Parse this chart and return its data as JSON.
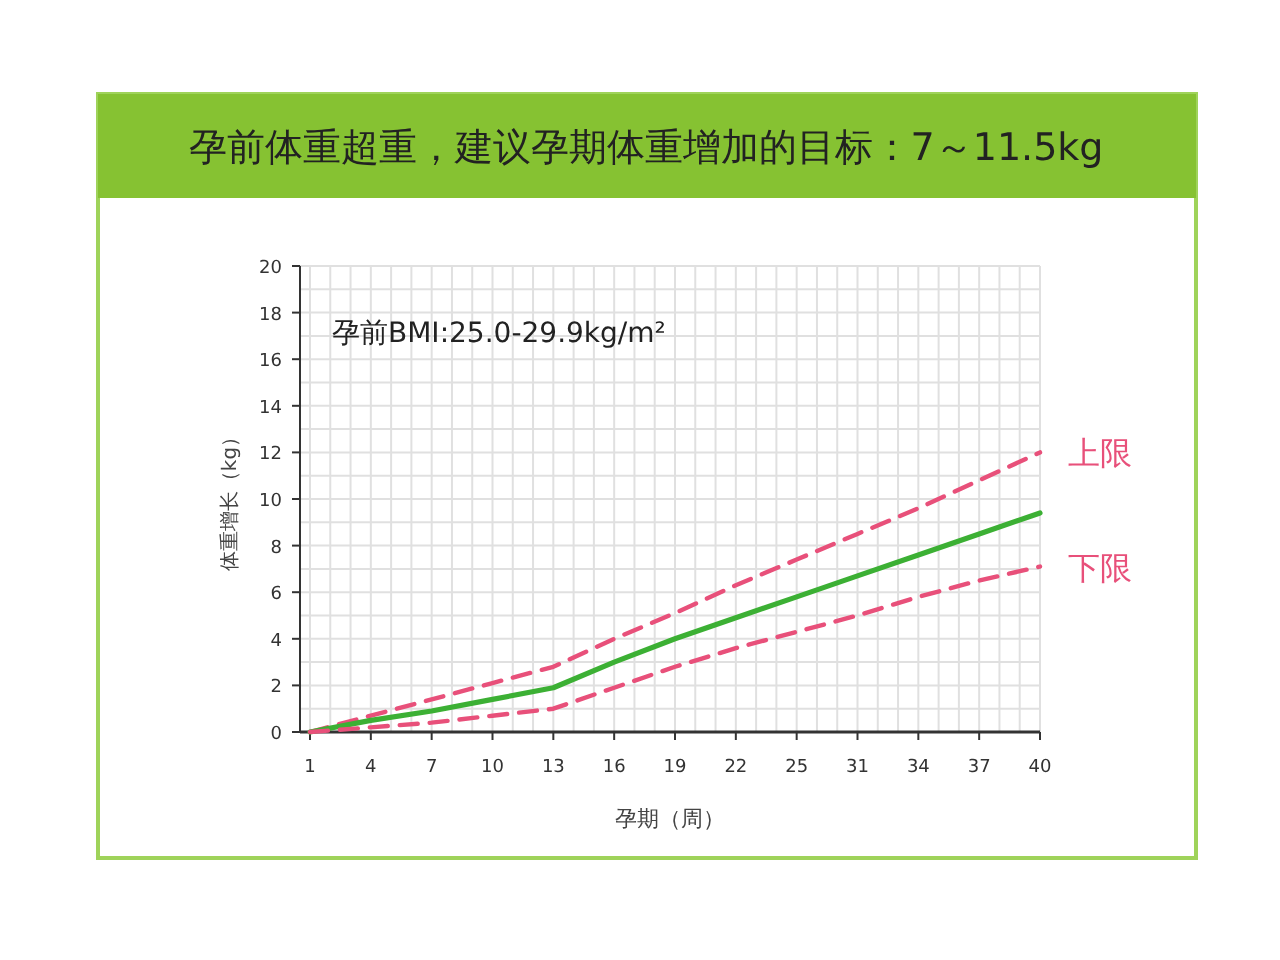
{
  "chart_data": {
    "type": "line",
    "title": "孕前体重超重，建议孕期体重增加的目标：7～11.5kg",
    "xlabel": "孕期（周）",
    "ylabel": "体重增长（kg）",
    "annotations": [
      "孕前BMI:25.0-29.9kg/m²"
    ],
    "categories": [
      "1",
      "4",
      "7",
      "10",
      "13",
      "16",
      "19",
      "22",
      "25",
      "31",
      "34",
      "37",
      "40"
    ],
    "series": [
      {
        "name": "上限",
        "color": "#e8507a",
        "line_style": "dashed",
        "values": [
          0,
          0.7,
          1.4,
          2.1,
          2.8,
          4.0,
          5.1,
          6.3,
          7.4,
          8.5,
          9.6,
          10.8,
          12
        ]
      },
      {
        "color": "#3cb034",
        "line_style": "solid",
        "values": [
          0,
          0.5,
          0.9,
          1.4,
          1.9,
          3.0,
          4.0,
          4.9,
          5.8,
          6.7,
          7.6,
          8.5,
          9.4
        ]
      },
      {
        "name": "下限",
        "color": "#e8507a",
        "line_style": "dashed",
        "values": [
          0,
          0.2,
          0.4,
          0.7,
          1.0,
          1.9,
          2.8,
          3.6,
          4.3,
          5.0,
          5.8,
          6.5,
          7.1
        ]
      }
    ],
    "ylim": [
      0,
      20
    ],
    "yticks": [
      0,
      2,
      4,
      6,
      8,
      10,
      12,
      14,
      16,
      18,
      20
    ],
    "grid": true
  }
}
